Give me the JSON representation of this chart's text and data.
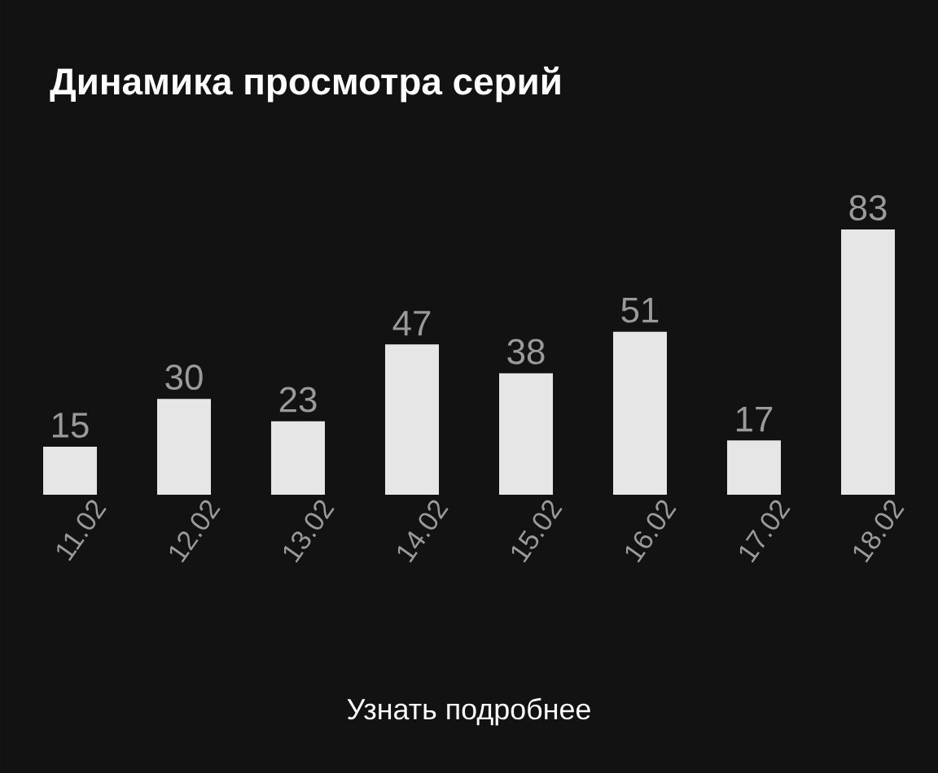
{
  "chart_data": {
    "type": "bar",
    "title": "Динамика просмотра серий",
    "categories": [
      "11.02",
      "12.02",
      "13.02",
      "14.02",
      "15.02",
      "16.02",
      "17.02",
      "18.02"
    ],
    "values": [
      15,
      30,
      23,
      47,
      38,
      51,
      17,
      83
    ],
    "color": "#e6e6e6",
    "data_labels": true,
    "annotations": [
      "Узнать подробнее"
    ]
  }
}
